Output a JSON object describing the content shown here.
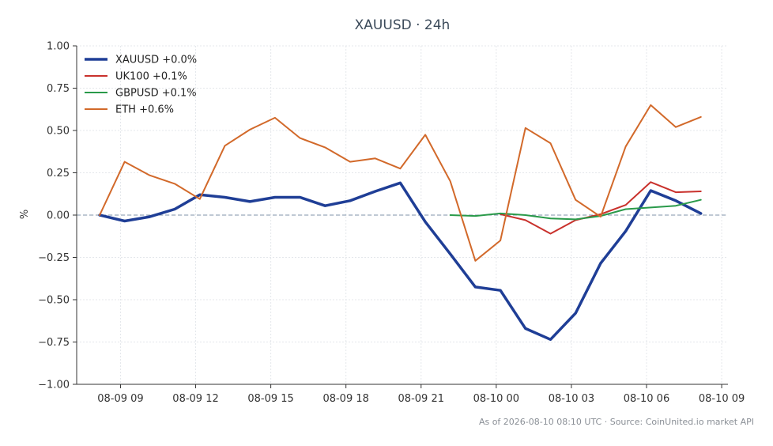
{
  "chart_data": {
    "type": "line",
    "title": "XAUUSD · 24h",
    "ylabel": "%",
    "xlabel": "",
    "footer": "As of 2026-08-10 08:10 UTC · Source: CoinUnited.io market API",
    "ylim": [
      -1.0,
      1.0
    ],
    "y_ticks": [
      1.0,
      0.75,
      0.5,
      0.25,
      0.0,
      -0.25,
      -0.5,
      -0.75,
      -1.0
    ],
    "y_tick_labels": [
      "1.00",
      "0.75",
      "0.50",
      "0.25",
      "0.00",
      "−0.25",
      "−0.50",
      "−0.75",
      "−1.00"
    ],
    "xlim": [
      "2026-08-09 07:15",
      "2026-08-10 09:15"
    ],
    "x_ticks": [
      "2026-08-09 09:00",
      "2026-08-09 12:00",
      "2026-08-09 15:00",
      "2026-08-09 18:00",
      "2026-08-09 21:00",
      "2026-08-10 00:00",
      "2026-08-10 03:00",
      "2026-08-10 06:00",
      "2026-08-10 09:00"
    ],
    "x_tick_labels": [
      "08-09 09",
      "08-09 12",
      "08-09 15",
      "08-09 18",
      "08-09 21",
      "08-10 00",
      "08-10 03",
      "08-10 06",
      "08-10 09"
    ],
    "grid": true,
    "zero_line": true,
    "legend_position": "top-left",
    "series": [
      {
        "name": "XAUUSD +0.0%",
        "color": "#1f3e96",
        "x": [
          "2026-08-09 08:10",
          "2026-08-09 09:10",
          "2026-08-09 10:10",
          "2026-08-09 11:10",
          "2026-08-09 12:10",
          "2026-08-09 13:10",
          "2026-08-09 14:10",
          "2026-08-09 15:10",
          "2026-08-09 16:10",
          "2026-08-09 17:10",
          "2026-08-09 18:10",
          "2026-08-09 19:10",
          "2026-08-09 20:10",
          "2026-08-09 21:10",
          "2026-08-09 22:10",
          "2026-08-09 23:10",
          "2026-08-10 00:10",
          "2026-08-10 01:10",
          "2026-08-10 02:10",
          "2026-08-10 03:10",
          "2026-08-10 04:10",
          "2026-08-10 05:10",
          "2026-08-10 06:10",
          "2026-08-10 07:10",
          "2026-08-10 08:10"
        ],
        "values": [
          0.0,
          -0.035,
          -0.01,
          0.035,
          0.12,
          0.105,
          0.08,
          0.105,
          0.105,
          0.055,
          0.085,
          0.14,
          0.19,
          -0.04,
          -0.23,
          -0.425,
          -0.445,
          -0.67,
          -0.735,
          -0.58,
          -0.285,
          -0.095,
          0.145,
          0.085,
          0.01
        ]
      },
      {
        "name": "UK100 +0.1%",
        "color": "#c9312c",
        "x": [
          "2026-08-10 00:10",
          "2026-08-10 01:10",
          "2026-08-10 02:10",
          "2026-08-10 03:10",
          "2026-08-10 04:10",
          "2026-08-10 05:10",
          "2026-08-10 06:10",
          "2026-08-10 07:10",
          "2026-08-10 08:10"
        ],
        "values": [
          0.005,
          -0.03,
          -0.11,
          -0.03,
          0.005,
          0.06,
          0.195,
          0.135,
          0.14
        ]
      },
      {
        "name": "GBPUSD +0.1%",
        "color": "#2a9a4a",
        "x": [
          "2026-08-09 22:10",
          "2026-08-09 23:10",
          "2026-08-10 00:10",
          "2026-08-10 01:10",
          "2026-08-10 02:10",
          "2026-08-10 03:10",
          "2026-08-10 04:10",
          "2026-08-10 05:10",
          "2026-08-10 06:10",
          "2026-08-10 07:10",
          "2026-08-10 08:10"
        ],
        "values": [
          0.0,
          -0.005,
          0.01,
          0.0,
          -0.02,
          -0.025,
          -0.005,
          0.035,
          0.045,
          0.055,
          0.09
        ]
      },
      {
        "name": "ETH +0.6%",
        "color": "#d2692a",
        "x": [
          "2026-08-09 08:10",
          "2026-08-09 09:10",
          "2026-08-09 10:10",
          "2026-08-09 11:10",
          "2026-08-09 12:10",
          "2026-08-09 13:10",
          "2026-08-09 14:10",
          "2026-08-09 15:10",
          "2026-08-09 16:10",
          "2026-08-09 17:10",
          "2026-08-09 18:10",
          "2026-08-09 19:10",
          "2026-08-09 20:10",
          "2026-08-09 21:10",
          "2026-08-09 22:10",
          "2026-08-09 23:10",
          "2026-08-10 00:10",
          "2026-08-10 01:10",
          "2026-08-10 02:10",
          "2026-08-10 03:10",
          "2026-08-10 04:10",
          "2026-08-10 05:10",
          "2026-08-10 06:10",
          "2026-08-10 07:10",
          "2026-08-10 08:10"
        ],
        "values": [
          0.0,
          0.315,
          0.235,
          0.185,
          0.095,
          0.41,
          0.505,
          0.575,
          0.455,
          0.4,
          0.315,
          0.335,
          0.275,
          0.475,
          0.2,
          -0.27,
          -0.15,
          0.515,
          0.425,
          0.09,
          -0.01,
          0.405,
          0.65,
          0.52,
          0.58
        ]
      }
    ]
  }
}
